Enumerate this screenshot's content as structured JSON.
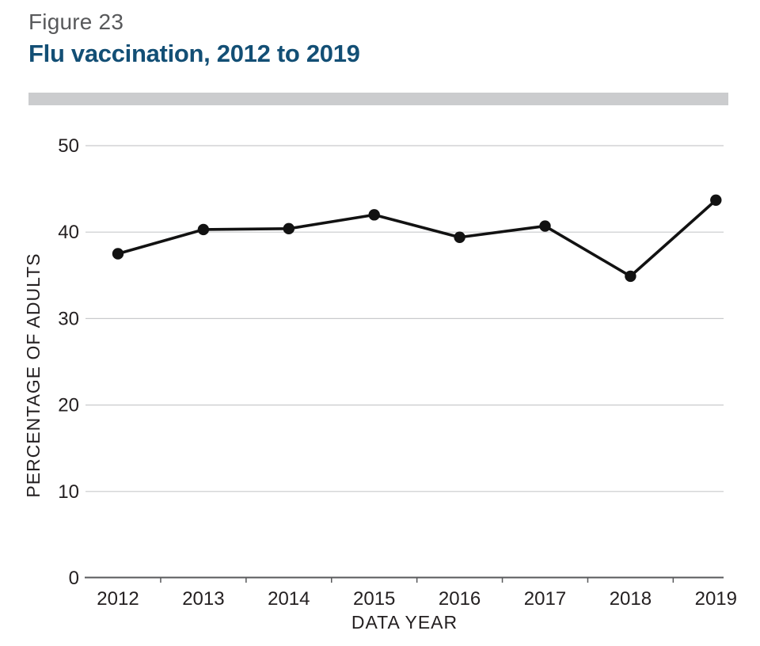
{
  "header": {
    "figure_label": "Figure 23",
    "title": "Flu vaccination, 2012 to 2019"
  },
  "colors": {
    "title_blue": "#134F75",
    "figure_label_gray": "#58595B",
    "divider_gray": "#CBCCCE",
    "line_black": "#121212",
    "grid_gray": "#C9CACC",
    "axis_gray": "#58595B",
    "tick_text": "#231F20"
  },
  "chart_data": {
    "type": "line",
    "title": "Flu vaccination, 2012 to 2019",
    "categories": [
      "2012",
      "2013",
      "2014",
      "2015",
      "2016",
      "2017",
      "2018",
      "2019"
    ],
    "values": [
      37.5,
      40.3,
      40.4,
      42.0,
      39.4,
      40.7,
      34.9,
      43.7
    ],
    "xlabel": "DATA YEAR",
    "ylabel": "PERCENTAGE OF ADULTS",
    "ylim": [
      0,
      50
    ],
    "yticks": [
      0,
      10,
      20,
      30,
      40,
      50
    ],
    "grid": true,
    "legend": "none",
    "marker": "circle"
  }
}
